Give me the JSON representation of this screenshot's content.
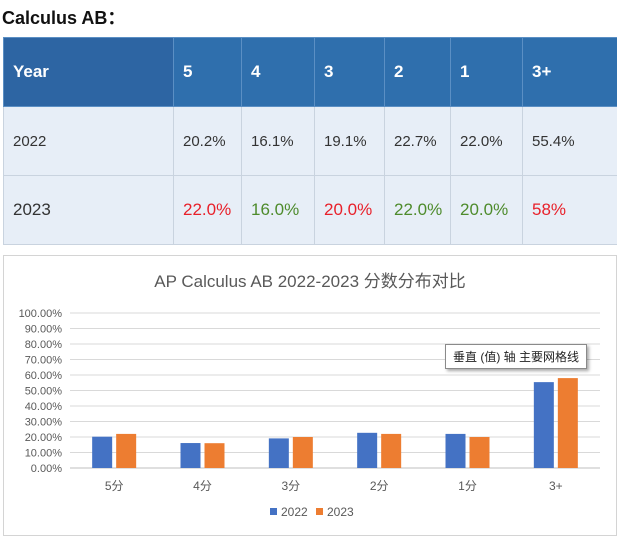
{
  "page_title": "Calculus AB：",
  "table": {
    "headers": [
      "Year",
      "5",
      "4",
      "3",
      "2",
      "1",
      "3+"
    ],
    "rows": [
      {
        "year": "2022",
        "cells": [
          "20.2%",
          "16.1%",
          "19.1%",
          "22.7%",
          "22.0%",
          "55.4%"
        ],
        "colors": [
          "",
          "",
          "",
          "",
          "",
          ""
        ]
      },
      {
        "year": "2023",
        "cells": [
          "22.0%",
          "16.0%",
          "20.0%",
          "22.0%",
          "20.0%",
          "58%"
        ],
        "colors": [
          "red",
          "green",
          "red",
          "green",
          "green",
          "red"
        ]
      }
    ]
  },
  "tooltip": "垂直 (值) 轴 主要网格线",
  "colors": {
    "series_2022": "#4472c4",
    "series_2023": "#ed7d31"
  },
  "chart_data": {
    "type": "bar",
    "title": "AP Calculus AB 2022-2023 分数分布对比",
    "categories": [
      "5分",
      "4分",
      "3分",
      "2分",
      "1分",
      "3+"
    ],
    "series": [
      {
        "name": "2022",
        "values": [
          20.2,
          16.1,
          19.1,
          22.7,
          22.0,
          55.4
        ]
      },
      {
        "name": "2023",
        "values": [
          22.0,
          16.0,
          20.0,
          22.0,
          20.0,
          58.0
        ]
      }
    ],
    "y_ticks": [
      "0.00%",
      "10.00%",
      "20.00%",
      "30.00%",
      "40.00%",
      "50.00%",
      "60.00%",
      "70.00%",
      "80.00%",
      "90.00%",
      "100.00%"
    ],
    "ylim": [
      0,
      100
    ],
    "grid": true,
    "legend": "bottom"
  }
}
